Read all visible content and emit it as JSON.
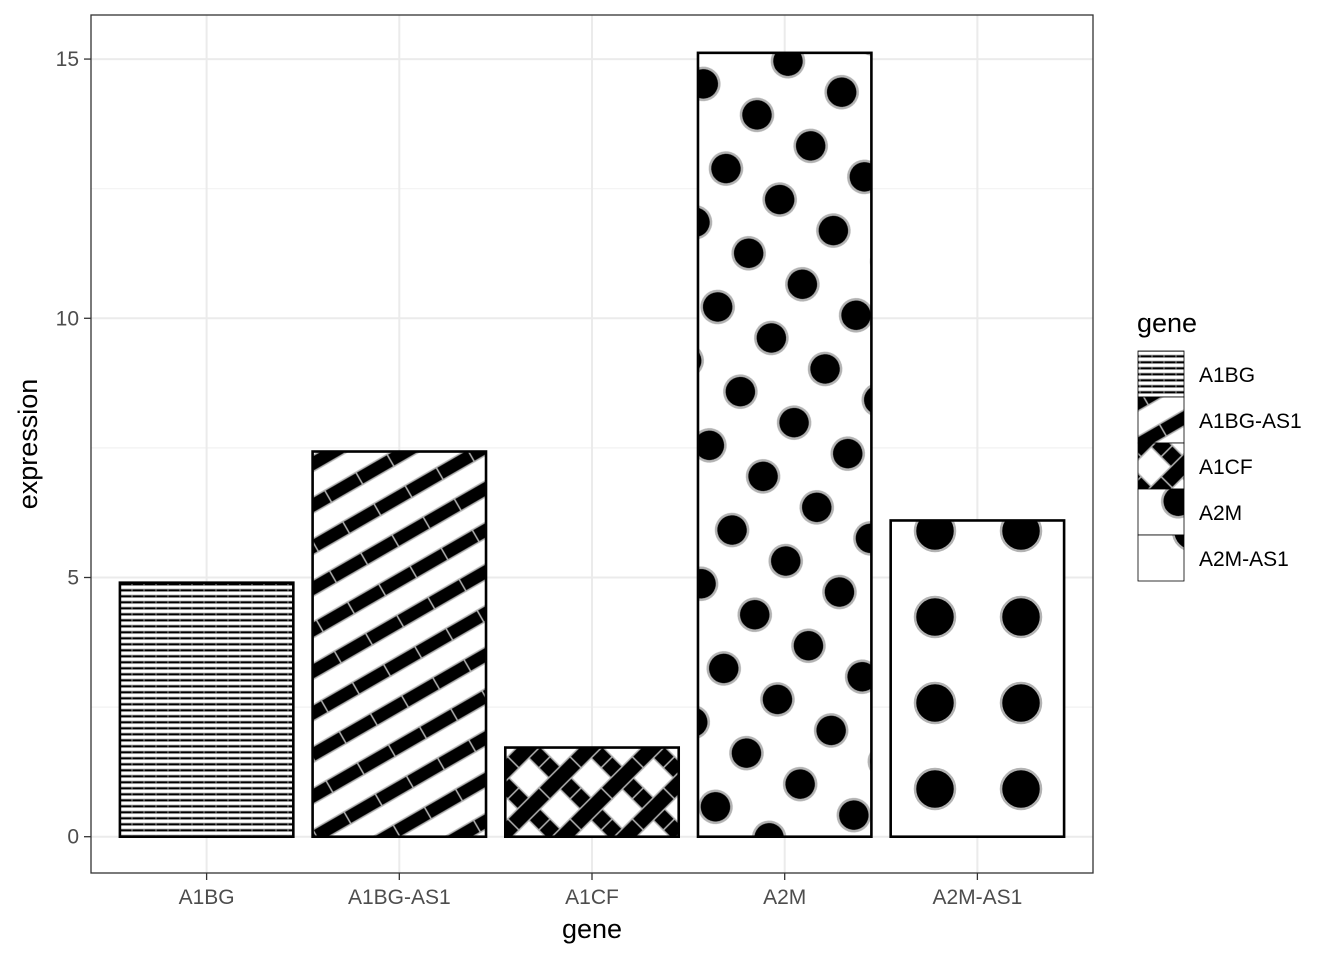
{
  "chart_data": {
    "type": "bar",
    "categories": [
      "A1BG",
      "A1BG-AS1",
      "A1CF",
      "A2M",
      "A2M-AS1"
    ],
    "values": [
      4.9,
      7.43,
      1.72,
      15.12,
      6.1
    ],
    "xlabel": "gene",
    "ylabel": "expression",
    "ylim": [
      -0.7,
      15.85
    ],
    "yticks": [
      0,
      5,
      10,
      15
    ],
    "grid": true,
    "legend": {
      "title": "gene",
      "position": "right",
      "entries": [
        "A1BG",
        "A1BG-AS1",
        "A1CF",
        "A2M",
        "A2M-AS1"
      ]
    },
    "patterns": [
      "horizontal-stripes",
      "diagonal-stripes",
      "crosshatch",
      "small-dots",
      "large-dots"
    ],
    "colors": {
      "pattern_fg": "#000000",
      "pattern_edge": "#b3b3b3",
      "background": "#ffffff",
      "grid": "#ebebeb",
      "panel_border": "#333333"
    }
  }
}
